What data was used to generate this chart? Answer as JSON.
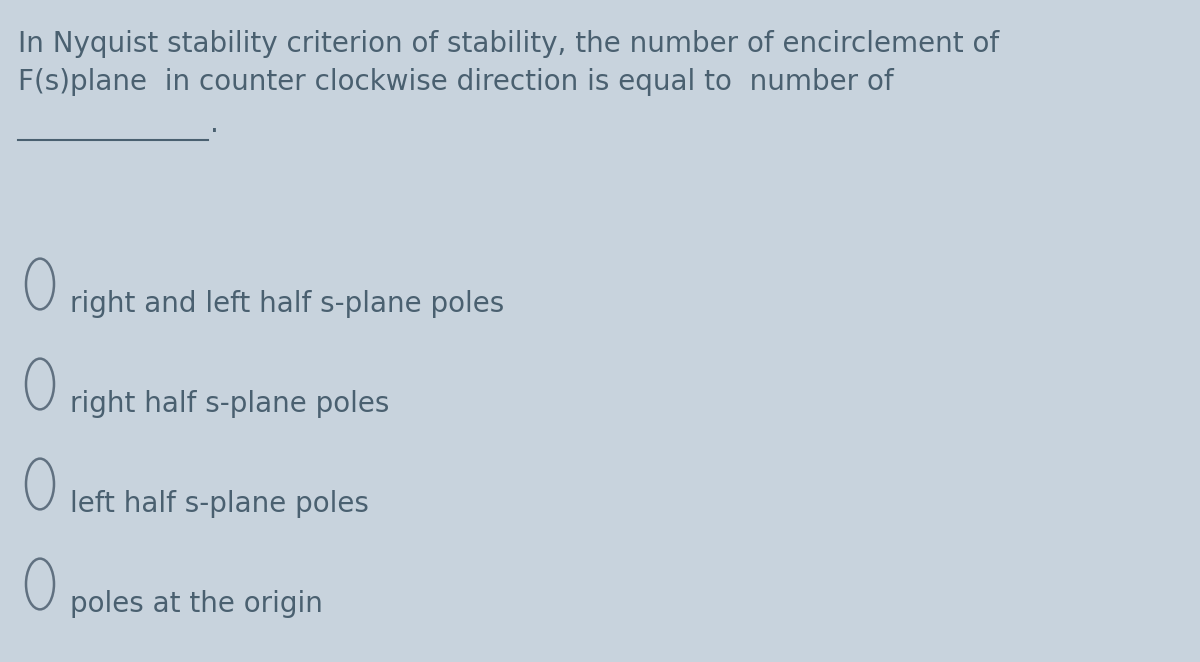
{
  "background_color": "#c8d3dd",
  "question_line1": "In Nyquist stability criterion of stability, the number of encirclement of",
  "question_line2": "F(s)plane  in counter clockwise direction is equal to  number of",
  "options": [
    "right and left half s-plane poles",
    "right half s-plane poles",
    "left half s-plane poles",
    "poles at the origin"
  ],
  "text_color": "#4a6070",
  "circle_color": "#607080",
  "question_fontsize": 20,
  "option_fontsize": 20,
  "fig_width": 12.0,
  "fig_height": 6.62,
  "dpi": 100
}
